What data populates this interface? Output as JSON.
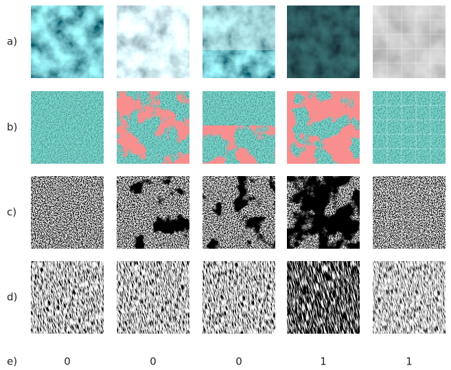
{
  "rows": [
    {
      "label": "a)"
    },
    {
      "label": "b)"
    },
    {
      "label": "c)"
    },
    {
      "label": "d)"
    }
  ],
  "result_row": {
    "label": "e)",
    "values": [
      0,
      0,
      0,
      1,
      1
    ]
  }
}
